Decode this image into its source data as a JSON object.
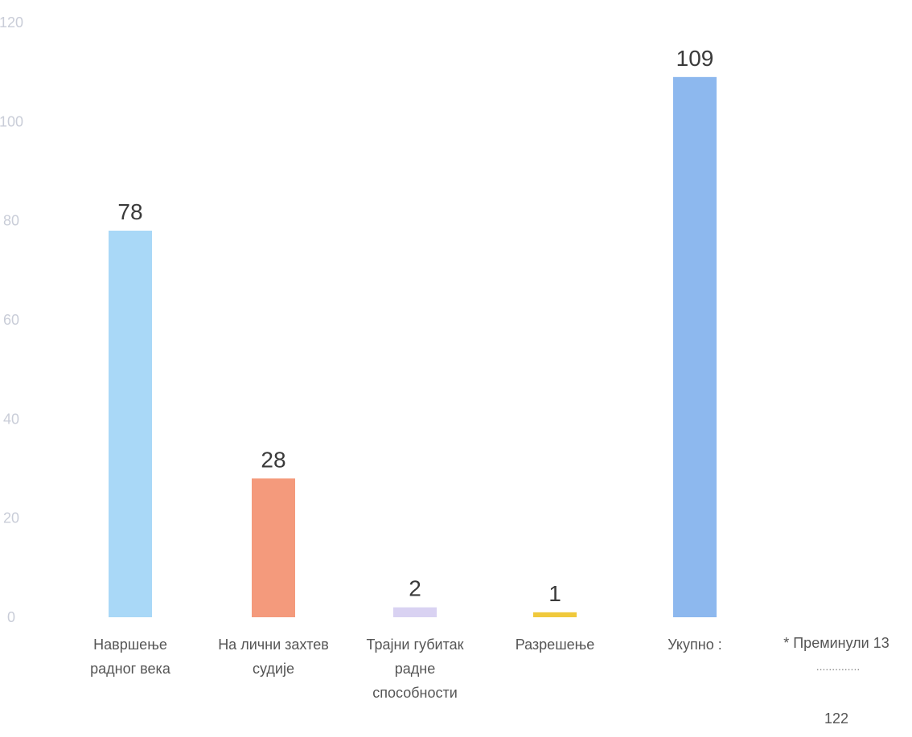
{
  "chart_data": {
    "type": "bar",
    "categories": [
      [
        "Навршење",
        "радног века"
      ],
      [
        "На лични захтев",
        "судије"
      ],
      [
        "Трајни губитак",
        "радне",
        "способности"
      ],
      [
        "Разрешење"
      ],
      [
        "Укупно :"
      ]
    ],
    "values": [
      78,
      28,
      2,
      1,
      109
    ],
    "data_labels": [
      "78",
      "28",
      "2",
      "1",
      "109"
    ],
    "colors": [
      "#a9d8f7",
      "#f49a7c",
      "#d9d2f2",
      "#f0c93c",
      "#8db8ee"
    ],
    "ylim": [
      0,
      120
    ],
    "yticks": [
      0,
      20,
      40,
      60,
      80,
      100,
      120
    ],
    "ytick_labels": [
      "0",
      "20",
      "40",
      "60",
      "80",
      "100",
      "120"
    ],
    "grid": false,
    "title": "",
    "xlabel": "",
    "ylabel": "",
    "note": {
      "text": "* Преминули 13",
      "separator": "..............",
      "total": "122"
    }
  }
}
